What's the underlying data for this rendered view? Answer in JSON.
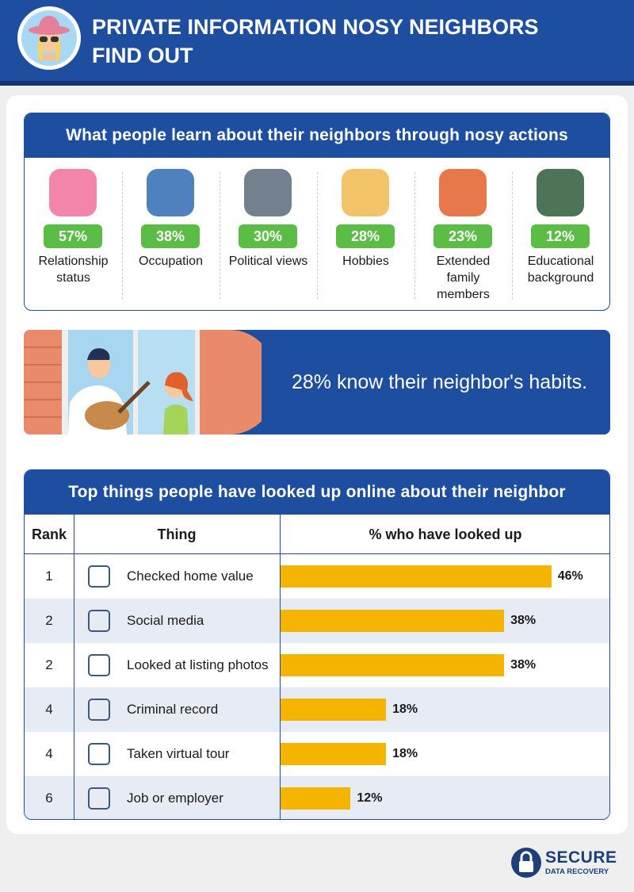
{
  "header": {
    "title": "PRIVATE INFORMATION NOSY NEIGHBORS FIND OUT"
  },
  "learned": {
    "title": "What people learn about their neighbors through nosy actions",
    "items": [
      {
        "percent": "57%",
        "label": "Relationship status"
      },
      {
        "percent": "38%",
        "label": "Occupation"
      },
      {
        "percent": "30%",
        "label": "Political views"
      },
      {
        "percent": "28%",
        "label": "Hobbies"
      },
      {
        "percent": "23%",
        "label": "Extended family members"
      },
      {
        "percent": "12%",
        "label": "Educational background"
      }
    ]
  },
  "banner": {
    "text": "28% know their neighbor's habits."
  },
  "lookups": {
    "title": "Top things people have looked up online about their neighbor",
    "headers": [
      "Rank",
      "Thing",
      "% who have looked up"
    ],
    "ranks": [
      "1",
      "2",
      "2",
      "4",
      "4",
      "6"
    ],
    "things": [
      "Checked home value",
      "Social media",
      "Looked at listing photos",
      "Criminal record",
      "Taken virtual tour",
      "Job or employer"
    ],
    "values": [
      46,
      38,
      38,
      18,
      18,
      12
    ],
    "value_labels": [
      "46%",
      "38%",
      "38%",
      "18%",
      "18%",
      "12%"
    ],
    "bar_color": "#f5b400"
  },
  "footer": {
    "brand": "SECURE",
    "tagline": "DATA RECOVERY"
  }
}
